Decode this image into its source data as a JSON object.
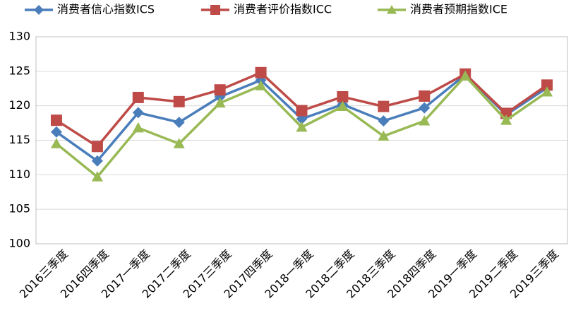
{
  "chart_data": {
    "type": "line",
    "categories": [
      "2016三季度",
      "2016四季度",
      "2017一季度",
      "2017二季度",
      "2017三季度",
      "2017四季度",
      "2018一季度",
      "2018二季度",
      "2018三季度",
      "2018四季度",
      "2019一季度",
      "2019二季度",
      "2019三季度"
    ],
    "series": [
      {
        "name": "消费者信心指数ICS",
        "color": "#4a7ebb",
        "marker": "diamond",
        "values": [
          116.2,
          112.0,
          119.0,
          117.6,
          121.3,
          123.7,
          118.1,
          120.2,
          117.8,
          119.7,
          124.5,
          118.7,
          122.6
        ]
      },
      {
        "name": "消费者评价指数ICC",
        "color": "#be4b48",
        "marker": "square",
        "values": [
          117.9,
          114.1,
          121.2,
          120.6,
          122.3,
          124.8,
          119.3,
          121.3,
          119.9,
          121.4,
          124.6,
          118.9,
          123.0
        ]
      },
      {
        "name": "消费者预期指数ICE",
        "color": "#98b954",
        "marker": "triangle",
        "values": [
          114.5,
          109.7,
          116.8,
          114.5,
          120.4,
          122.9,
          116.9,
          119.9,
          115.6,
          117.8,
          124.3,
          117.9,
          122.0
        ]
      }
    ],
    "ylim": [
      100,
      130
    ],
    "yticks": [
      100,
      105,
      110,
      115,
      120,
      125,
      130
    ],
    "grid": true,
    "legend": "top"
  }
}
